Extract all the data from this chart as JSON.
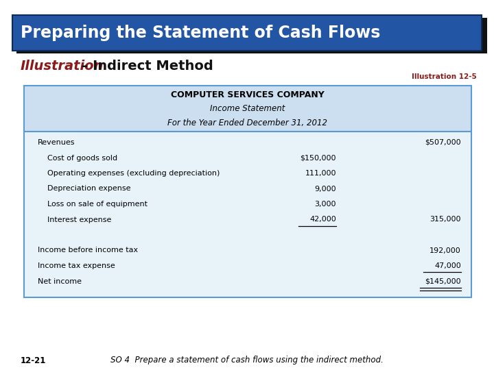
{
  "title": "Preparing the Statement of Cash Flows",
  "title_bg": "#2255A4",
  "title_bg2": "#1A3F7A",
  "title_color": "#FFFFFF",
  "illustration_red": "Illustration",
  "illustration_rest": " – Indirect Method",
  "illustration_label": "Illustration 12-5",
  "company_name": "COMPUTER SERVICES COMPANY",
  "stmt_title": "Income Statement",
  "stmt_period": "For the Year Ended December 31, 2012",
  "header_bg": "#CCDFF0",
  "table_bg": "#E8F2F9",
  "border_top_color": "#5B9BD5",
  "border_bot_color": "#5B9BD5",
  "rows": [
    {
      "label": "Revenues",
      "col1": "",
      "col2": "$507,000",
      "indent": 0,
      "ul1": false,
      "ul2": false,
      "dbl": false
    },
    {
      "label": "Cost of goods sold",
      "col1": "$150,000",
      "col2": "",
      "indent": 1,
      "ul1": false,
      "ul2": false,
      "dbl": false
    },
    {
      "label": "Operating expenses (excluding depreciation)",
      "col1": "111,000",
      "col2": "",
      "indent": 1,
      "ul1": false,
      "ul2": false,
      "dbl": false
    },
    {
      "label": "Depreciation expense",
      "col1": "9,000",
      "col2": "",
      "indent": 1,
      "ul1": false,
      "ul2": false,
      "dbl": false
    },
    {
      "label": "Loss on sale of equipment",
      "col1": "3,000",
      "col2": "",
      "indent": 1,
      "ul1": false,
      "ul2": false,
      "dbl": false
    },
    {
      "label": "Interest expense",
      "col1": "42,000",
      "col2": "315,000",
      "indent": 1,
      "ul1": true,
      "ul2": false,
      "dbl": false
    },
    {
      "label": "",
      "col1": "",
      "col2": "",
      "indent": 0,
      "ul1": false,
      "ul2": false,
      "dbl": false
    },
    {
      "label": "Income before income tax",
      "col1": "",
      "col2": "192,000",
      "indent": 0,
      "ul1": false,
      "ul2": false,
      "dbl": false
    },
    {
      "label": "Income tax expense",
      "col1": "",
      "col2": "47,000",
      "indent": 0,
      "ul1": false,
      "ul2": true,
      "dbl": false
    },
    {
      "label": "Net income",
      "col1": "",
      "col2": "$145,000",
      "indent": 0,
      "ul1": false,
      "ul2": false,
      "dbl": true
    }
  ],
  "footer_left": "12-21",
  "footer_text": "SO 4  Prepare a statement of cash flows using the indirect method."
}
